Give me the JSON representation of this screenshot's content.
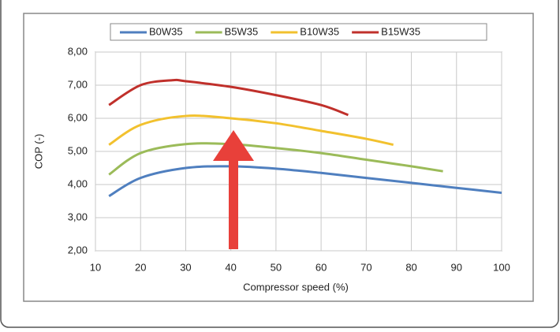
{
  "chart_data": {
    "type": "line",
    "xlabel": "Compressor speed (%)",
    "ylabel": "COP (-)",
    "xlim": [
      10,
      100
    ],
    "ylim": [
      2,
      8
    ],
    "xticks": [
      10,
      20,
      30,
      40,
      50,
      60,
      70,
      80,
      90,
      100
    ],
    "yticks": [
      {
        "value": 2,
        "label": "2,00"
      },
      {
        "value": 3,
        "label": "3,00"
      },
      {
        "value": 4,
        "label": "4,00"
      },
      {
        "value": 5,
        "label": "5,00"
      },
      {
        "value": 6,
        "label": "6,00"
      },
      {
        "value": 7,
        "label": "7,00"
      },
      {
        "value": 8,
        "label": "8,00"
      }
    ],
    "grid": true,
    "legend": "top",
    "series": [
      {
        "name": "B0W35",
        "color": "#4f7fbf",
        "x": [
          13,
          20,
          30,
          40,
          50,
          60,
          70,
          80,
          90,
          100
        ],
        "values": [
          3.65,
          4.2,
          4.5,
          4.55,
          4.48,
          4.35,
          4.2,
          4.05,
          3.9,
          3.75
        ]
      },
      {
        "name": "B5W35",
        "color": "#9bbb59",
        "x": [
          13,
          20,
          30,
          40,
          50,
          60,
          70,
          80,
          87
        ],
        "values": [
          4.3,
          4.95,
          5.22,
          5.22,
          5.1,
          4.95,
          4.75,
          4.55,
          4.4
        ]
      },
      {
        "name": "B10W35",
        "color": "#f2c12e",
        "x": [
          13,
          20,
          30,
          40,
          50,
          60,
          70,
          76
        ],
        "values": [
          5.2,
          5.8,
          6.07,
          6.0,
          5.85,
          5.62,
          5.38,
          5.2
        ]
      },
      {
        "name": "B15W35",
        "color": "#c0302b",
        "x": [
          13,
          20,
          27,
          30,
          40,
          50,
          60,
          66
        ],
        "values": [
          6.4,
          7.0,
          7.15,
          7.12,
          6.95,
          6.7,
          6.4,
          6.1
        ]
      }
    ]
  }
}
